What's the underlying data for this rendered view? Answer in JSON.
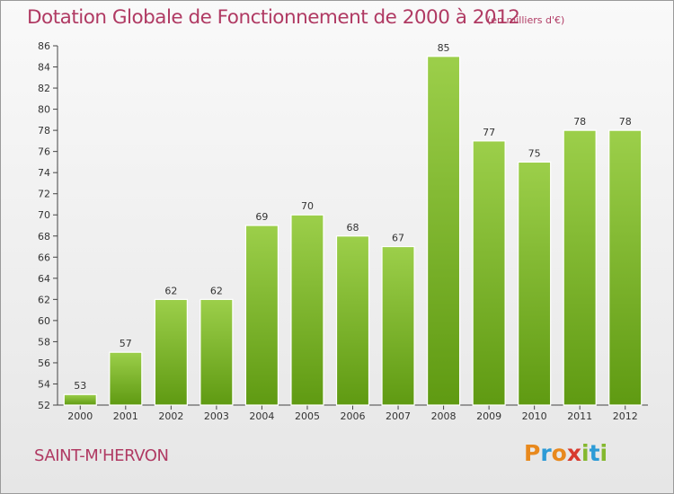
{
  "title": "Dotation Globale de Fonctionnement de 2000 à 2012",
  "unit": "(en milliers d'€)",
  "commune": "SAINT-M'HERVON",
  "logo": {
    "letters": [
      "P",
      "r",
      "o",
      "x",
      "i",
      "t",
      "i"
    ],
    "colors": [
      "#e8891d",
      "#2d9bd6",
      "#e8891d",
      "#d83a2e",
      "#84b82e",
      "#2d9bd6",
      "#84b82e"
    ]
  },
  "colors": {
    "title": "#b03a63",
    "bar_light": "#9ccf4a",
    "bar_dark": "#5f9a12"
  },
  "chart_data": {
    "type": "bar",
    "categories": [
      "2000",
      "2001",
      "2002",
      "2003",
      "2004",
      "2005",
      "2006",
      "2007",
      "2008",
      "2009",
      "2010",
      "2011",
      "2012"
    ],
    "values": [
      53,
      57,
      62,
      62,
      69,
      70,
      68,
      67,
      85,
      77,
      75,
      78,
      78
    ],
    "ylim": [
      52,
      86
    ],
    "yticks": [
      52,
      54,
      56,
      58,
      60,
      62,
      64,
      66,
      68,
      70,
      72,
      74,
      76,
      78,
      80,
      82,
      84,
      86
    ],
    "grid": false,
    "legend": "none"
  }
}
